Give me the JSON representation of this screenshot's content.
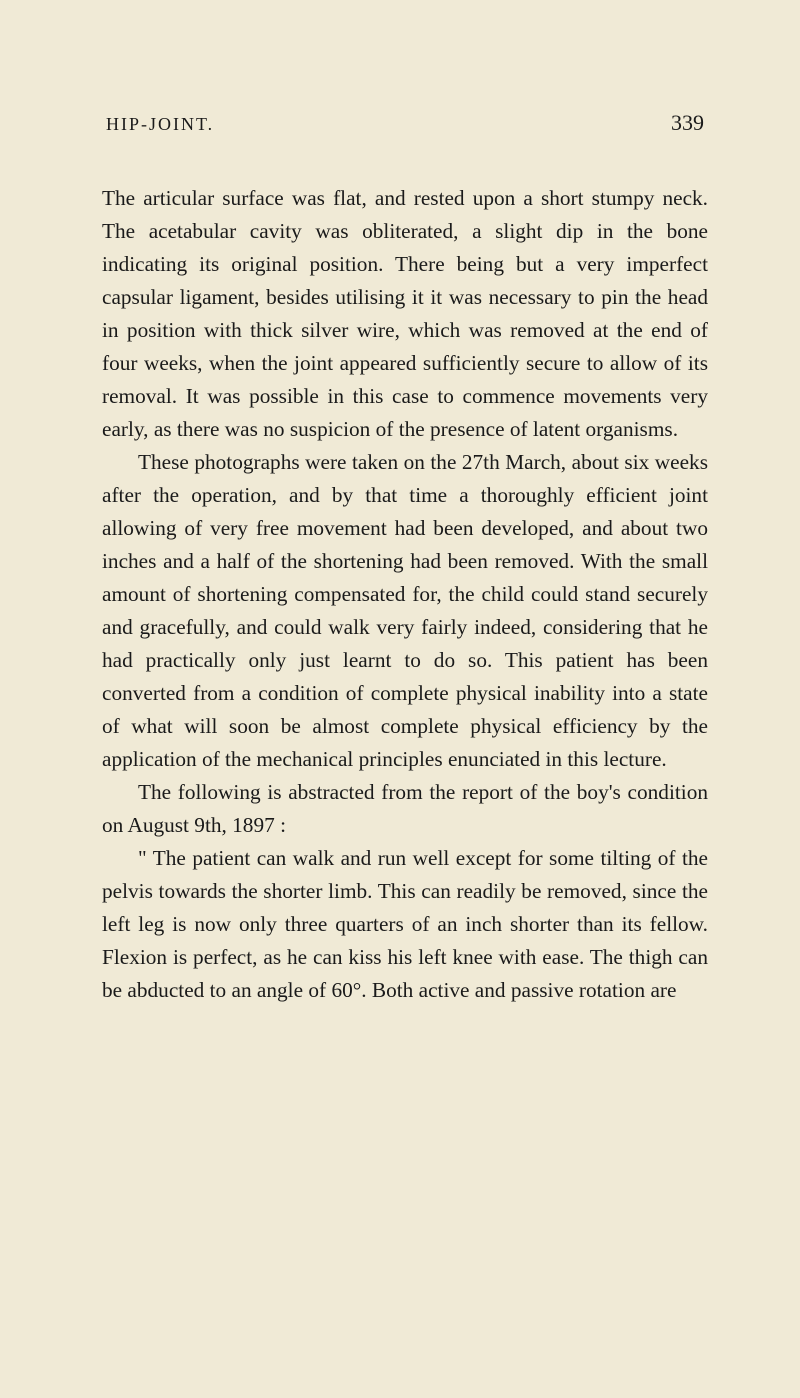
{
  "header": {
    "title": "HIP-JOINT.",
    "pageNumber": "339"
  },
  "paragraphs": {
    "p1": "The articular surface was flat, and rested upon a short stumpy neck. The acetabular cavity was obliterated, a slight dip in the bone indicating its original position. There being but a very imperfect capsular ligament, besides utilising it it was necessary to pin the head in position with thick silver wire, which was removed at the end of four weeks, when the joint appeared sufficiently secure to allow of its removal. It was possible in this case to commence movements very early, as there was no suspicion of the presence of latent organisms.",
    "p2": "These photographs were taken on the 27th March, about six weeks after the operation, and by that time a thoroughly efficient joint allowing of very free movement had been developed, and about two inches and a half of the shortening had been removed. With the small amount of shortening compensated for, the child could stand securely and gracefully, and could walk very fairly indeed, considering that he had practically only just learnt to do so. This patient has been converted from a condition of complete physical inability into a state of what will soon be almost complete physical efficiency by the application of the mechanical principles enunciated in this lecture.",
    "p3": "The following is abstracted from the report of the boy's condition on August 9th, 1897 :",
    "p4": "\" The patient can walk and run well except for some tilting of the pelvis towards the shorter limb. This can readily be removed, since the left leg is now only three quarters of an inch shorter than its fellow. Flexion is perfect, as he can kiss his left knee with ease. The thigh can be abducted to an angle of 60°. Both active and passive rotation are"
  },
  "styling": {
    "backgroundColor": "#f0ead6",
    "textColor": "#1a1a1a",
    "fontFamily": "Georgia",
    "bodyFontSize": 21.3,
    "lineHeight": 1.55,
    "textIndent": 36,
    "pageWidth": 800,
    "pageHeight": 1398
  }
}
